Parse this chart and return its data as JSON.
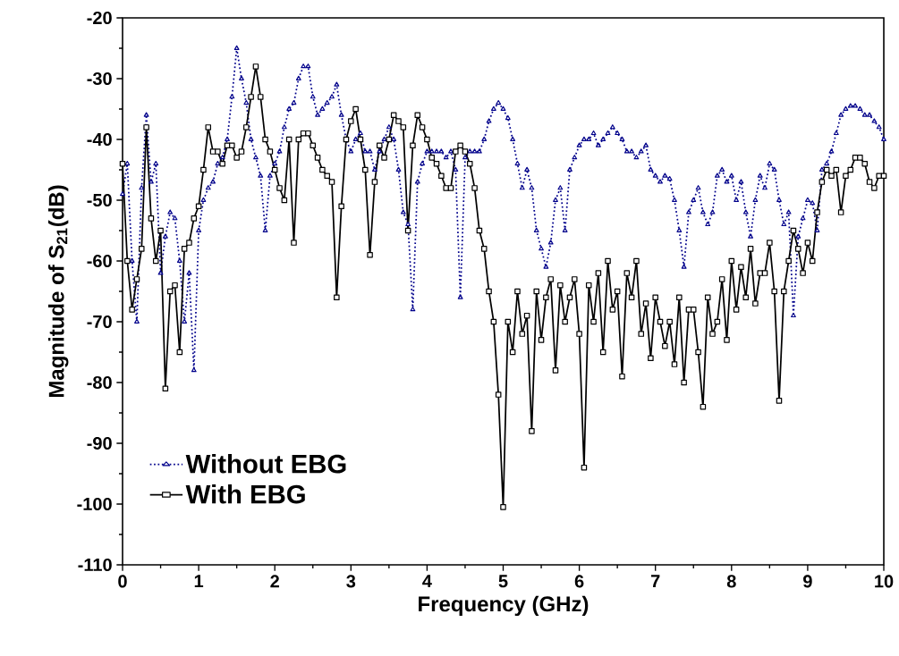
{
  "chart_data": {
    "type": "line",
    "xlabel": "Frequency (GHz)",
    "ylabel": "Magnitude of S$_{21}$(dB)",
    "x": [
      0,
      0.0625,
      0.125,
      0.1875,
      0.25,
      0.3125,
      0.375,
      0.4375,
      0.5,
      0.5625,
      0.625,
      0.6875,
      0.75,
      0.8125,
      0.875,
      0.9375,
      1,
      1.0625,
      1.125,
      1.1875,
      1.25,
      1.3125,
      1.375,
      1.4375,
      1.5,
      1.5625,
      1.625,
      1.6875,
      1.75,
      1.8125,
      1.875,
      1.9375,
      2,
      2.0625,
      2.125,
      2.1875,
      2.25,
      2.3125,
      2.375,
      2.4375,
      2.5,
      2.5625,
      2.625,
      2.6875,
      2.75,
      2.8125,
      2.875,
      2.9375,
      3,
      3.0625,
      3.125,
      3.1875,
      3.25,
      3.3125,
      3.375,
      3.4375,
      3.5,
      3.5625,
      3.625,
      3.6875,
      3.75,
      3.8125,
      3.875,
      3.9375,
      4,
      4.0625,
      4.125,
      4.1875,
      4.25,
      4.3125,
      4.375,
      4.4375,
      4.5,
      4.5625,
      4.625,
      4.6875,
      4.75,
      4.8125,
      4.875,
      4.9375,
      5,
      5.0625,
      5.125,
      5.1875,
      5.25,
      5.3125,
      5.375,
      5.4375,
      5.5,
      5.5625,
      5.625,
      5.6875,
      5.75,
      5.8125,
      5.875,
      5.9375,
      6,
      6.0625,
      6.125,
      6.1875,
      6.25,
      6.3125,
      6.375,
      6.4375,
      6.5,
      6.5625,
      6.625,
      6.6875,
      6.75,
      6.8125,
      6.875,
      6.9375,
      7,
      7.0625,
      7.125,
      7.1875,
      7.25,
      7.3125,
      7.375,
      7.4375,
      7.5,
      7.5625,
      7.625,
      7.6875,
      7.75,
      7.8125,
      7.875,
      7.9375,
      8,
      8.0625,
      8.125,
      8.1875,
      8.25,
      8.3125,
      8.375,
      8.4375,
      8.5,
      8.5625,
      8.625,
      8.6875,
      8.75,
      8.8125,
      8.875,
      8.9375,
      9,
      9.0625,
      9.125,
      9.1875,
      9.25,
      9.3125,
      9.375,
      9.4375,
      9.5,
      9.5625,
      9.625,
      9.6875,
      9.75,
      9.8125,
      9.875,
      9.9375,
      10
    ],
    "series": [
      {
        "name": "Without EBG",
        "color": "#00008b",
        "marker": "triangle",
        "line_style": "dotted",
        "values": [
          -49,
          -44,
          -60,
          -70,
          -48,
          -36,
          -47,
          -44,
          -62,
          -56,
          -52,
          -53,
          -60,
          -70,
          -62,
          -78,
          -55,
          -50,
          -48,
          -47,
          -44,
          -43,
          -40,
          -33,
          -25,
          -30,
          -34,
          -40,
          -43,
          -46,
          -55,
          -46,
          -44,
          -42,
          -38,
          -35,
          -34,
          -30,
          -28,
          -28,
          -33,
          -36,
          -35,
          -34,
          -33,
          -31,
          -36,
          -40,
          -42,
          -40,
          -39,
          -42,
          -42,
          -45,
          -42,
          -40,
          -38,
          -40,
          -45,
          -52,
          -54,
          -68,
          -47,
          -44,
          -42,
          -42,
          -42,
          -42,
          -43,
          -42,
          -45,
          -66,
          -43,
          -42,
          -42,
          -42,
          -40,
          -37,
          -35,
          -34,
          -35,
          -36.5,
          -40,
          -44,
          -48,
          -45,
          -48,
          -55,
          -58,
          -61,
          -57,
          -50,
          -48,
          -55,
          -45,
          -43,
          -41,
          -40,
          -40,
          -39,
          -41,
          -40,
          -39,
          -38,
          -39,
          -40,
          -42,
          -42,
          -43,
          -42,
          -41,
          -45,
          -46,
          -47,
          -46,
          -46.5,
          -50,
          -55,
          -61,
          -52,
          -50,
          -48,
          -52,
          -54,
          -52,
          -46,
          -45,
          -47,
          -46,
          -50,
          -47,
          -52,
          -56,
          -50,
          -46,
          -48,
          -44,
          -45,
          -50,
          -54,
          -52,
          -69,
          -56,
          -53,
          -50,
          -50.5,
          -55,
          -45,
          -44,
          -42,
          -39,
          -36,
          -35,
          -34.5,
          -34.5,
          -35,
          -36,
          -36,
          -37,
          -38,
          -40
        ]
      },
      {
        "name": "With EBG",
        "color": "#000000",
        "marker": "square",
        "line_style": "solid",
        "values": [
          -44,
          -60,
          -68,
          -63,
          -58,
          -38,
          -53,
          -60,
          -55,
          -81,
          -65,
          -64,
          -75,
          -58,
          -57,
          -53,
          -51,
          -45,
          -38,
          -42,
          -42,
          -44,
          -41,
          -41,
          -43,
          -42,
          -38,
          -33,
          -28,
          -33,
          -40,
          -42,
          -45,
          -48,
          -50,
          -40,
          -57,
          -40,
          -39,
          -39,
          -41,
          -43,
          -45,
          -46,
          -47,
          -66,
          -51,
          -40,
          -37,
          -35,
          -40,
          -45,
          -59,
          -47,
          -41,
          -43,
          -40,
          -36,
          -37,
          -38,
          -55,
          -41,
          -36,
          -38,
          -40,
          -43,
          -44,
          -46,
          -48,
          -48,
          -42,
          -41,
          -42,
          -44,
          -48,
          -55,
          -58,
          -65,
          -70,
          -82,
          -100.5,
          -70,
          -75,
          -65,
          -72,
          -69,
          -88,
          -65,
          -73,
          -66,
          -63,
          -78,
          -64,
          -70,
          -66,
          -63,
          -72,
          -94,
          -64,
          -70,
          -62,
          -75,
          -60,
          -68,
          -65,
          -79,
          -62,
          -66,
          -60,
          -72,
          -67,
          -76,
          -66,
          -70,
          -74,
          -70,
          -77,
          -66,
          -80,
          -68,
          -68,
          -75,
          -84,
          -66,
          -72,
          -70,
          -63,
          -73,
          -60,
          -68,
          -61,
          -66,
          -58,
          -67,
          -62,
          -62,
          -57,
          -65,
          -83,
          -65,
          -60,
          -55,
          -58,
          -62,
          -57,
          -60,
          -52,
          -47,
          -45,
          -46,
          -45,
          -52,
          -46,
          -45,
          -43,
          -43,
          -44,
          -47,
          -48,
          -46,
          -46
        ]
      }
    ],
    "xlim": [
      0,
      10
    ],
    "ylim": [
      -110,
      -20
    ],
    "xticks": [
      0,
      1,
      2,
      3,
      4,
      5,
      6,
      7,
      8,
      9,
      10
    ],
    "yticks": [
      -110,
      -100,
      -90,
      -80,
      -70,
      -60,
      -50,
      -40,
      -30,
      -20
    ],
    "legend": "bottom left",
    "grid": false
  }
}
